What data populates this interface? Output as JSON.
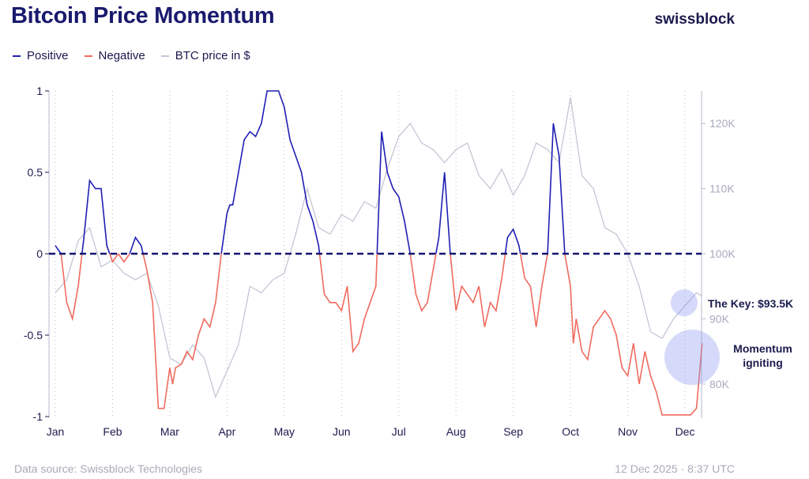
{
  "header": {
    "title": "Bitcoin Price Momentum",
    "brand": "swissblock"
  },
  "legend": [
    {
      "label": "Positive",
      "color": "#1f1fb4"
    },
    {
      "label": "Negative",
      "color": "#f06b5e"
    },
    {
      "label": "BTC price in $",
      "color": "#c5c6d6"
    }
  ],
  "footer": {
    "source": "Data source: Swissblock Technologies",
    "timestamp": "12 Dec 2025 · 8:37 UTC"
  },
  "annotations": {
    "key": "The Key: $93.5K",
    "momentum_line1": "Momentum",
    "momentum_line2": "igniting"
  },
  "chart_data": {
    "type": "line",
    "title": "Bitcoin Price Momentum",
    "x_domain": [
      0,
      11.4
    ],
    "months": [
      "Jan",
      "Feb",
      "Mar",
      "Apr",
      "May",
      "Jun",
      "Jul",
      "Aug",
      "Sep",
      "Oct",
      "Nov",
      "Dec"
    ],
    "y_left": {
      "range": [
        -1,
        1
      ],
      "ticks": [
        1,
        0.5,
        0,
        -0.5,
        -1
      ],
      "tick_labels": [
        "1",
        "0.5",
        "0",
        "-0.5",
        "-1"
      ]
    },
    "y_right": {
      "range": [
        75000,
        125000
      ],
      "ticks": [
        120000,
        110000,
        100000,
        90000,
        80000
      ],
      "tick_labels": [
        "120K",
        "110K",
        "100K",
        "90K",
        "80K"
      ]
    },
    "zero_line": 0,
    "series": [
      {
        "name": "Momentum",
        "axis": "left",
        "positive_color": "#1f1fb4",
        "negative_color": "#f06b5e",
        "x": [
          0,
          0.1,
          0.2,
          0.3,
          0.4,
          0.5,
          0.6,
          0.7,
          0.8,
          0.9,
          1.0,
          1.1,
          1.2,
          1.3,
          1.4,
          1.5,
          1.6,
          1.7,
          1.8,
          1.9,
          2.0,
          2.05,
          2.1,
          2.2,
          2.3,
          2.4,
          2.5,
          2.6,
          2.7,
          2.8,
          2.9,
          3.0,
          3.05,
          3.1,
          3.2,
          3.3,
          3.4,
          3.5,
          3.6,
          3.7,
          3.8,
          3.9,
          4.0,
          4.1,
          4.2,
          4.3,
          4.4,
          4.5,
          4.6,
          4.7,
          4.8,
          4.9,
          5.0,
          5.1,
          5.2,
          5.3,
          5.4,
          5.5,
          5.6,
          5.7,
          5.8,
          5.9,
          6.0,
          6.1,
          6.2,
          6.3,
          6.4,
          6.5,
          6.6,
          6.7,
          6.8,
          6.9,
          7.0,
          7.1,
          7.2,
          7.3,
          7.4,
          7.5,
          7.6,
          7.7,
          7.8,
          7.9,
          8.0,
          8.1,
          8.2,
          8.3,
          8.4,
          8.5,
          8.6,
          8.7,
          8.8,
          8.9,
          9.0,
          9.05,
          9.1,
          9.2,
          9.3,
          9.4,
          9.5,
          9.6,
          9.7,
          9.8,
          9.9,
          10.0,
          10.1,
          10.2,
          10.3,
          10.4,
          10.5,
          10.6,
          10.7,
          10.8,
          10.9,
          11.0,
          11.1,
          11.2,
          11.3
        ],
        "y": [
          0.05,
          0.0,
          -0.3,
          -0.4,
          -0.2,
          0.1,
          0.45,
          0.4,
          0.4,
          0.05,
          -0.05,
          0.0,
          -0.05,
          0.0,
          0.1,
          0.05,
          -0.1,
          -0.3,
          -0.95,
          -0.95,
          -0.7,
          -0.8,
          -0.7,
          -0.68,
          -0.6,
          -0.65,
          -0.5,
          -0.4,
          -0.45,
          -0.3,
          0.0,
          0.25,
          0.3,
          0.3,
          0.5,
          0.7,
          0.75,
          0.72,
          0.8,
          1.0,
          1.0,
          1.0,
          0.9,
          0.7,
          0.6,
          0.5,
          0.3,
          0.2,
          0.05,
          -0.25,
          -0.3,
          -0.3,
          -0.35,
          -0.2,
          -0.6,
          -0.55,
          -0.4,
          -0.3,
          -0.2,
          0.75,
          0.5,
          0.4,
          0.35,
          0.2,
          0.0,
          -0.25,
          -0.35,
          -0.3,
          -0.1,
          0.1,
          0.5,
          0.0,
          -0.35,
          -0.2,
          -0.25,
          -0.3,
          -0.2,
          -0.45,
          -0.3,
          -0.35,
          -0.15,
          0.1,
          0.15,
          0.05,
          -0.15,
          -0.2,
          -0.45,
          -0.2,
          0.0,
          0.8,
          0.6,
          0.0,
          -0.2,
          -0.55,
          -0.4,
          -0.6,
          -0.65,
          -0.45,
          -0.4,
          -0.35,
          -0.4,
          -0.5,
          -0.7,
          -0.75,
          -0.55,
          -0.8,
          -0.6,
          -0.75,
          -0.85,
          -0.99,
          -0.99,
          -0.99,
          -0.99,
          -0.99,
          -0.99,
          -0.95,
          -0.55
        ]
      },
      {
        "name": "BTC price in $",
        "axis": "right",
        "color": "#c5c6d6",
        "x": [
          0,
          0.2,
          0.4,
          0.6,
          0.8,
          1.0,
          1.2,
          1.4,
          1.6,
          1.8,
          2.0,
          2.2,
          2.4,
          2.6,
          2.8,
          3.0,
          3.2,
          3.4,
          3.6,
          3.8,
          4.0,
          4.2,
          4.4,
          4.6,
          4.8,
          5.0,
          5.2,
          5.4,
          5.6,
          5.8,
          6.0,
          6.2,
          6.4,
          6.6,
          6.8,
          7.0,
          7.2,
          7.4,
          7.6,
          7.8,
          8.0,
          8.2,
          8.4,
          8.6,
          8.8,
          9.0,
          9.2,
          9.4,
          9.6,
          9.8,
          10.0,
          10.2,
          10.4,
          10.6,
          10.8,
          11.0,
          11.2,
          11.3
        ],
        "y": [
          94000,
          96000,
          102000,
          104000,
          98000,
          99000,
          97000,
          96000,
          97000,
          92000,
          84000,
          83000,
          86000,
          84000,
          78000,
          82000,
          86000,
          95000,
          94000,
          96000,
          97000,
          103000,
          110000,
          104000,
          103000,
          106000,
          105000,
          108000,
          107000,
          113000,
          118000,
          120000,
          117000,
          116000,
          114000,
          116000,
          117000,
          112000,
          110000,
          113000,
          109000,
          112000,
          117000,
          116000,
          114000,
          124000,
          112000,
          110000,
          104000,
          103000,
          100000,
          95000,
          88000,
          87000,
          90000,
          92000,
          94000,
          93500
        ]
      }
    ]
  }
}
